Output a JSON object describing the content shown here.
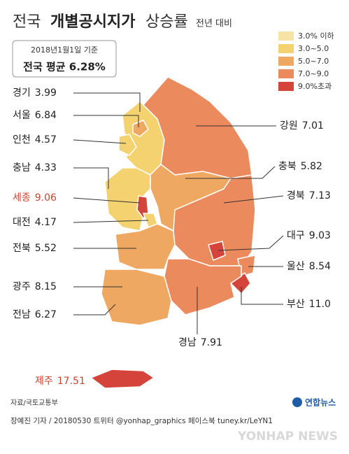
{
  "header": {
    "title_prefix": "전국",
    "title_main": "개별공시지가",
    "title_suffix": "상승률",
    "subtitle": "전년 대비"
  },
  "info_box": {
    "date": "2018년1월1일 기준",
    "average": "전국 평균 6.28%"
  },
  "legend": [
    {
      "label": "3.0% 이하",
      "color": "#f8e3a6"
    },
    {
      "label": "3.0~5.0",
      "color": "#f3d26f"
    },
    {
      "label": "5.0~7.0",
      "color": "#efa862"
    },
    {
      "label": "7.0~9.0",
      "color": "#eb8a5c"
    },
    {
      "label": "9.0%초과",
      "color": "#d5443a"
    }
  ],
  "regions": [
    {
      "name": "경기",
      "value": 3.99,
      "color": "#f3d26f"
    },
    {
      "name": "서울",
      "value": 6.84,
      "color": "#efa862"
    },
    {
      "name": "인천",
      "value": 4.57,
      "color": "#f3d26f"
    },
    {
      "name": "충남",
      "value": 4.33,
      "color": "#f3d26f"
    },
    {
      "name": "세종",
      "value": 9.06,
      "color": "#d5443a",
      "label_color": "#d0432f"
    },
    {
      "name": "대전",
      "value": 4.17,
      "color": "#f3d26f"
    },
    {
      "name": "전북",
      "value": 5.52,
      "color": "#efa862"
    },
    {
      "name": "광주",
      "value": 8.15,
      "color": "#eb8a5c"
    },
    {
      "name": "전남",
      "value": 6.27,
      "color": "#efa862"
    },
    {
      "name": "강원",
      "value": 7.01,
      "color": "#eb8a5c"
    },
    {
      "name": "충북",
      "value": 5.82,
      "color": "#efa862"
    },
    {
      "name": "경북",
      "value": 7.13,
      "color": "#eb8a5c"
    },
    {
      "name": "대구",
      "value": 9.03,
      "color": "#d5443a"
    },
    {
      "name": "울산",
      "value": 8.54,
      "color": "#eb8a5c"
    },
    {
      "name": "부산",
      "value": 11,
      "value_label": "11.0",
      "color": "#d5443a"
    },
    {
      "name": "경남",
      "value": 7.91,
      "color": "#eb8a5c"
    },
    {
      "name": "제주",
      "value": 17.51,
      "color": "#d5443a",
      "label_color": "#d0432f"
    }
  ],
  "source": "자료/국토교통부",
  "logo": "연합뉴스",
  "footer": "장예진 기자 / 20180530 트위터 @yonhap_graphics 페이스북 tuney.kr/LeYN1",
  "watermark": "YONHAP NEWS"
}
